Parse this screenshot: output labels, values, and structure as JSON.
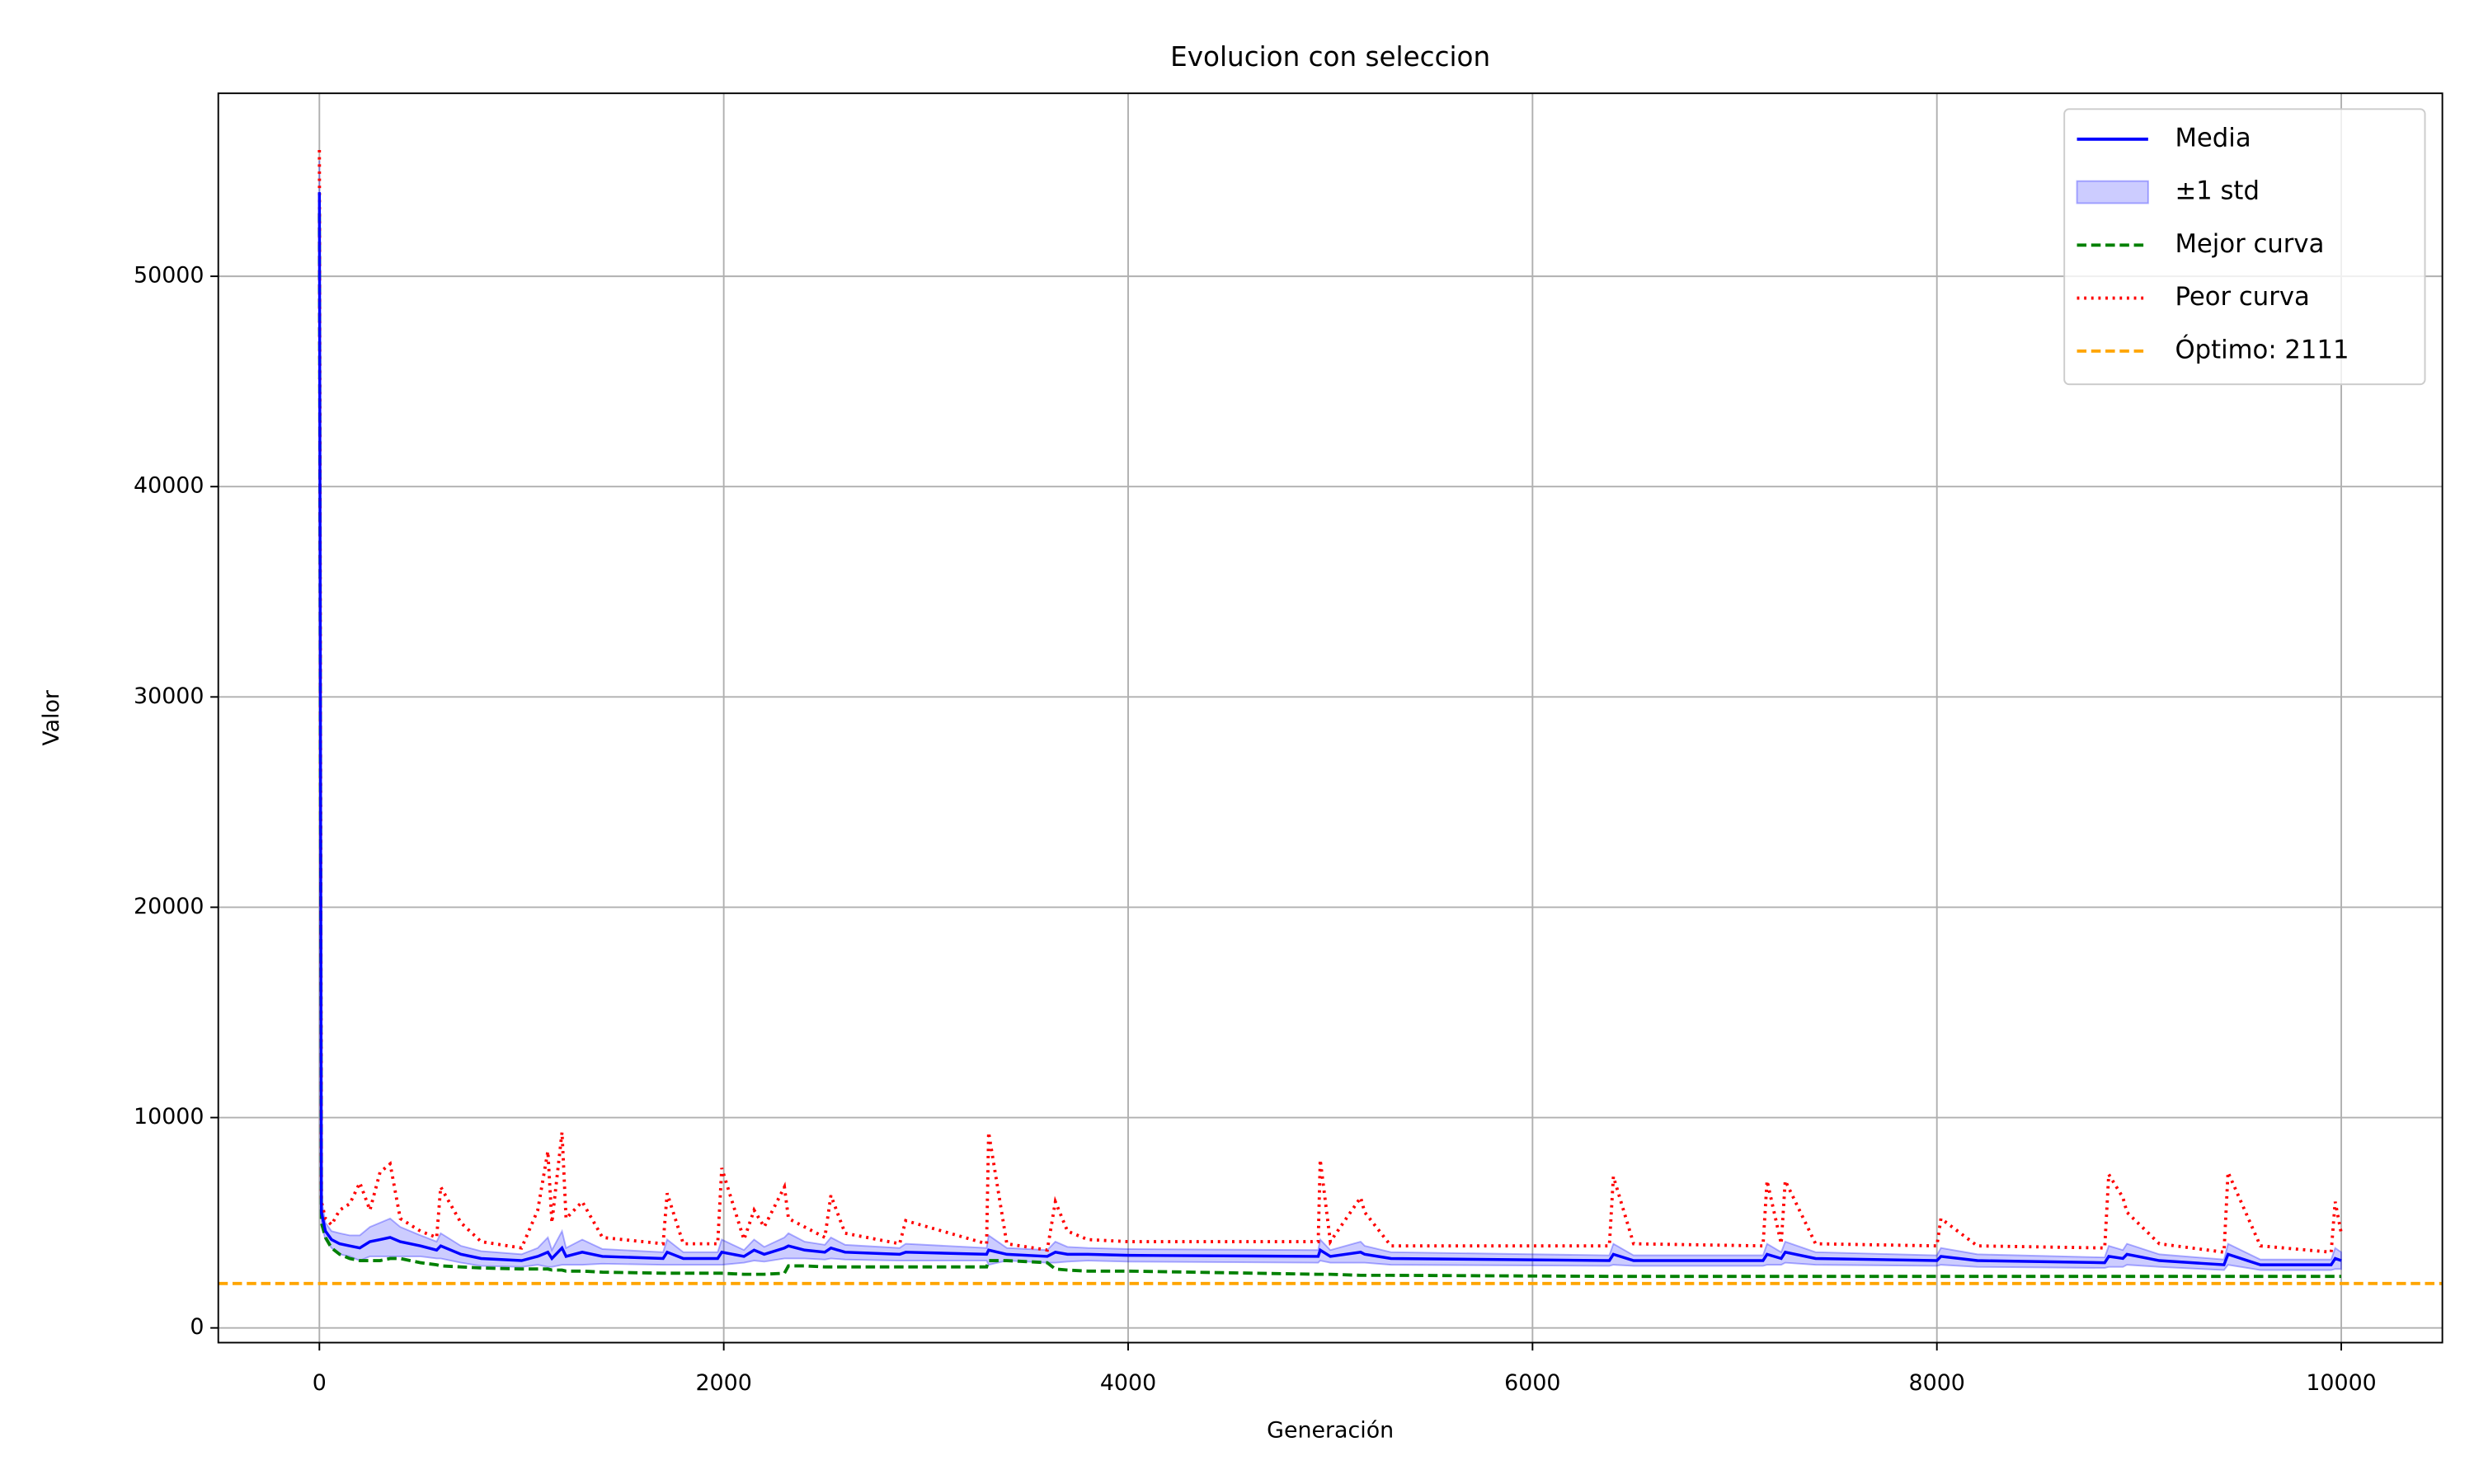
{
  "chart_data": {
    "type": "line",
    "title": "Evolucion con seleccion",
    "xlabel": "Generación",
    "ylabel": "Valor",
    "x": [
      0,
      10,
      30,
      60,
      100,
      150,
      200,
      250,
      300,
      350,
      400,
      500,
      580,
      600,
      700,
      800,
      1000,
      1080,
      1130,
      1150,
      1200,
      1220,
      1300,
      1400,
      1700,
      1720,
      1800,
      1970,
      1990,
      2100,
      2150,
      2200,
      2300,
      2320,
      2400,
      2500,
      2530,
      2600,
      2870,
      2900,
      3300,
      3310,
      3400,
      3600,
      3640,
      3700,
      3800,
      4000,
      4940,
      4950,
      5000,
      5150,
      5170,
      5300,
      6380,
      6400,
      6500,
      7140,
      7160,
      7230,
      7250,
      7400,
      8000,
      8020,
      8200,
      8830,
      8850,
      8920,
      8940,
      9100,
      9420,
      9440,
      9600,
      9950,
      9970,
      10000
    ],
    "series": [
      {
        "name": "Media",
        "color": "#0000ff",
        "style": "solid",
        "values": [
          54000,
          5500,
          4600,
          4200,
          4000,
          3900,
          3800,
          4100,
          4200,
          4300,
          4100,
          3900,
          3700,
          3900,
          3500,
          3300,
          3200,
          3400,
          3600,
          3300,
          3800,
          3400,
          3600,
          3400,
          3300,
          3600,
          3300,
          3300,
          3600,
          3400,
          3700,
          3500,
          3800,
          3900,
          3700,
          3600,
          3800,
          3600,
          3500,
          3600,
          3500,
          3700,
          3500,
          3400,
          3600,
          3500,
          3500,
          3450,
          3400,
          3700,
          3400,
          3600,
          3500,
          3300,
          3200,
          3500,
          3200,
          3200,
          3500,
          3300,
          3600,
          3300,
          3200,
          3400,
          3200,
          3100,
          3400,
          3300,
          3500,
          3200,
          3000,
          3500,
          3000,
          3000,
          3300,
          3200
        ]
      },
      {
        "name": "Mejor curva",
        "color": "#008000",
        "style": "dashed",
        "values": [
          53000,
          5000,
          4300,
          3800,
          3500,
          3300,
          3200,
          3200,
          3200,
          3300,
          3300,
          3100,
          3000,
          2950,
          2900,
          2850,
          2800,
          2800,
          2800,
          2750,
          2750,
          2700,
          2700,
          2650,
          2600,
          2600,
          2600,
          2600,
          2600,
          2550,
          2550,
          2550,
          2600,
          2950,
          2950,
          2900,
          2900,
          2900,
          2900,
          2900,
          2900,
          3200,
          3200,
          3100,
          2800,
          2750,
          2700,
          2700,
          2550,
          2550,
          2550,
          2500,
          2500,
          2500,
          2450,
          2450,
          2450,
          2450,
          2450,
          2450,
          2450,
          2450,
          2450,
          2450,
          2450,
          2450,
          2450,
          2450,
          2450,
          2450,
          2450,
          2450,
          2450,
          2450,
          2450,
          2450
        ]
      },
      {
        "name": "Peor curva",
        "color": "#ff0000",
        "style": "dotted",
        "values": [
          56000,
          6000,
          5200,
          4900,
          5600,
          5900,
          6900,
          5600,
          7400,
          7800,
          5200,
          4600,
          4300,
          6700,
          5000,
          4100,
          3800,
          5600,
          8400,
          5000,
          9300,
          5200,
          6000,
          4300,
          4000,
          6400,
          4000,
          4000,
          7600,
          4200,
          5600,
          4800,
          6700,
          5200,
          4800,
          4300,
          6300,
          4500,
          4000,
          5100,
          4000,
          9300,
          4000,
          3700,
          6000,
          4600,
          4200,
          4100,
          4100,
          8000,
          4100,
          6200,
          5500,
          3900,
          3900,
          7200,
          4000,
          3900,
          7000,
          4000,
          7000,
          4000,
          3900,
          5200,
          3900,
          3800,
          7300,
          6200,
          5500,
          4000,
          3600,
          7400,
          3900,
          3600,
          6000,
          4500
        ]
      }
    ],
    "band": {
      "name": "±1 std",
      "color": "#0000ff",
      "values": [
        1500,
        600,
        400,
        400,
        500,
        500,
        600,
        700,
        800,
        900,
        700,
        500,
        400,
        600,
        400,
        350,
        300,
        400,
        700,
        400,
        800,
        400,
        600,
        350,
        300,
        600,
        300,
        300,
        600,
        300,
        500,
        350,
        500,
        600,
        400,
        350,
        500,
        350,
        300,
        400,
        300,
        700,
        300,
        300,
        500,
        350,
        300,
        300,
        300,
        500,
        300,
        500,
        400,
        300,
        250,
        500,
        250,
        250,
        500,
        300,
        500,
        300,
        250,
        400,
        300,
        250,
        500,
        400,
        500,
        300,
        250,
        500,
        250,
        250,
        500,
        400
      ]
    },
    "hline": {
      "name": "Óptimo: 2111",
      "value": 2111,
      "color": "#ffa500"
    },
    "xlim": [
      -500,
      10500
    ],
    "ylim": [
      -700,
      58700
    ],
    "xticks": [
      0,
      2000,
      4000,
      6000,
      8000,
      10000
    ],
    "yticks": [
      0,
      10000,
      20000,
      30000,
      40000,
      50000
    ],
    "grid": true,
    "legend": "upper right"
  }
}
